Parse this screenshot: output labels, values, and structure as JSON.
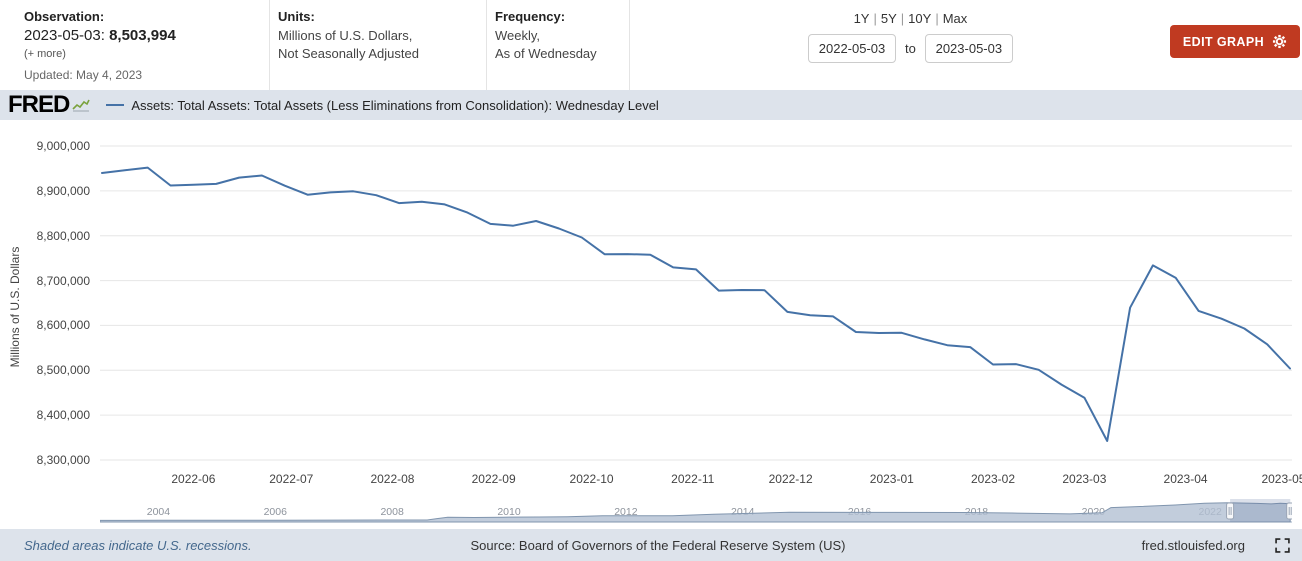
{
  "header": {
    "observation": {
      "label": "Observation:",
      "date": "2023-05-03:",
      "value": "8,503,994",
      "more_link": "(+ more)",
      "updated": "Updated: May 4, 2023"
    },
    "units": {
      "label": "Units:",
      "line1": "Millions of U.S. Dollars,",
      "line2": "Not Seasonally Adjusted"
    },
    "frequency": {
      "label": "Frequency:",
      "line1": "Weekly,",
      "line2": "As of Wednesday"
    },
    "range": {
      "presets": [
        "1Y",
        "5Y",
        "10Y",
        "Max"
      ],
      "separator": "|",
      "start_date": "2022-05-03",
      "to_label": "to",
      "end_date": "2023-05-03"
    },
    "edit_graph_label": "EDIT GRAPH",
    "edit_graph_color": "#c03a21"
  },
  "brand": {
    "logo_text": "FRED"
  },
  "legend": {
    "series_label": "Assets: Total Assets: Total Assets (Less Eliminations from Consolidation): Wednesday Level",
    "series_color": "#4572a7"
  },
  "chart_data": {
    "type": "line",
    "title": "Assets: Total Assets: Total Assets (Less Eliminations from Consolidation): Wednesday Level",
    "ylabel": "Millions of U.S. Dollars",
    "ylim": [
      8300000,
      9000000
    ],
    "y_tick_labels": [
      "9,000,000",
      "8,900,000",
      "8,800,000",
      "8,700,000",
      "8,600,000",
      "8,500,000",
      "8,400,000",
      "8,300,000"
    ],
    "x_range": [
      "2022-05-04",
      "2023-05-03"
    ],
    "x_tick_labels": [
      "2022-06",
      "2022-07",
      "2022-08",
      "2022-09",
      "2022-10",
      "2022-11",
      "2022-12",
      "2023-01",
      "2023-02",
      "2023-03",
      "2023-04",
      "2023-05"
    ],
    "grid": true,
    "legend_position": "top",
    "line_color": "#4572a7",
    "series": [
      {
        "name": "Assets: Total Assets: Total Assets (Less Eliminations from Consolidation): Wednesday Level",
        "points": [
          [
            "2022-05-04",
            8939761
          ],
          [
            "2022-05-11",
            8945873
          ],
          [
            "2022-05-18",
            8951798
          ],
          [
            "2022-05-25",
            8911847
          ],
          [
            "2022-06-01",
            8913754
          ],
          [
            "2022-06-08",
            8915420
          ],
          [
            "2022-06-15",
            8929502
          ],
          [
            "2022-06-22",
            8934322
          ],
          [
            "2022-06-29",
            8911545
          ],
          [
            "2022-07-06",
            8891476
          ],
          [
            "2022-07-13",
            8896614
          ],
          [
            "2022-07-20",
            8898911
          ],
          [
            "2022-07-27",
            8890386
          ],
          [
            "2022-08-03",
            8872750
          ],
          [
            "2022-08-10",
            8875816
          ],
          [
            "2022-08-17",
            8869907
          ],
          [
            "2022-08-24",
            8851466
          ],
          [
            "2022-08-31",
            8826396
          ],
          [
            "2022-09-07",
            8822402
          ],
          [
            "2022-09-14",
            8832759
          ],
          [
            "2022-09-21",
            8816063
          ],
          [
            "2022-09-28",
            8795979
          ],
          [
            "2022-10-05",
            8758858
          ],
          [
            "2022-10-12",
            8759107
          ],
          [
            "2022-10-19",
            8757755
          ],
          [
            "2022-10-26",
            8729327
          ],
          [
            "2022-11-02",
            8724923
          ],
          [
            "2022-11-09",
            8677566
          ],
          [
            "2022-11-16",
            8678914
          ],
          [
            "2022-11-23",
            8678533
          ],
          [
            "2022-11-30",
            8630139
          ],
          [
            "2022-12-07",
            8622681
          ],
          [
            "2022-12-14",
            8620168
          ],
          [
            "2022-12-21",
            8585383
          ],
          [
            "2022-12-28",
            8583054
          ],
          [
            "2023-01-04",
            8583501
          ],
          [
            "2023-01-11",
            8568941
          ],
          [
            "2023-01-18",
            8556029
          ],
          [
            "2023-01-25",
            8551632
          ],
          [
            "2023-02-01",
            8512867
          ],
          [
            "2023-02-08",
            8513799
          ],
          [
            "2023-02-15",
            8501160
          ],
          [
            "2023-02-22",
            8468108
          ],
          [
            "2023-03-01",
            8438978
          ],
          [
            "2023-03-08",
            8342283
          ],
          [
            "2023-03-15",
            8639452
          ],
          [
            "2023-03-22",
            8733787
          ],
          [
            "2023-03-29",
            8705961
          ],
          [
            "2023-04-05",
            8632384
          ],
          [
            "2023-04-12",
            8615006
          ],
          [
            "2023-04-19",
            8593264
          ],
          [
            "2023-04-26",
            8557944
          ],
          [
            "2023-05-03",
            8503994
          ]
        ]
      }
    ]
  },
  "minimap": {
    "type": "area",
    "x_range": [
      2003,
      2023.4
    ],
    "ylim": [
      0,
      9300000
    ],
    "x_tick_labels": [
      "2004",
      "2006",
      "2008",
      "2010",
      "2012",
      "2014",
      "2016",
      "2018",
      "2020",
      "2022"
    ],
    "selection": [
      2022.34,
      2023.37
    ],
    "fill_color": "#b3c0d3",
    "edge_color": "#8095ae",
    "points": [
      [
        2003,
        730000
      ],
      [
        2004,
        770000
      ],
      [
        2005,
        800000
      ],
      [
        2006,
        835000
      ],
      [
        2007,
        870000
      ],
      [
        2008.6,
        940000
      ],
      [
        2008.75,
        1500000
      ],
      [
        2008.95,
        2250000
      ],
      [
        2009.4,
        2080000
      ],
      [
        2009.9,
        2240000
      ],
      [
        2010.5,
        2330000
      ],
      [
        2011,
        2450000
      ],
      [
        2011.6,
        2870000
      ],
      [
        2012.8,
        2870000
      ],
      [
        2013.5,
        3600000
      ],
      [
        2014.8,
        4500000
      ],
      [
        2016,
        4470000
      ],
      [
        2017.8,
        4440000
      ],
      [
        2018.6,
        4200000
      ],
      [
        2019.6,
        3780000
      ],
      [
        2019.95,
        4150000
      ],
      [
        2020.15,
        4300000
      ],
      [
        2020.3,
        6700000
      ],
      [
        2020.8,
        7200000
      ],
      [
        2021.4,
        7900000
      ],
      [
        2021.9,
        8700000
      ],
      [
        2022.3,
        8950000
      ],
      [
        2022.8,
        8650000
      ],
      [
        2023.05,
        8400000
      ],
      [
        2023.2,
        8700000
      ],
      [
        2023.37,
        8500000
      ]
    ]
  },
  "footer": {
    "recessions_note": "Shaded areas indicate U.S. recessions.",
    "source": "Source: Board of Governors of the Federal Reserve System (US)",
    "site": "fred.stlouisfed.org"
  }
}
